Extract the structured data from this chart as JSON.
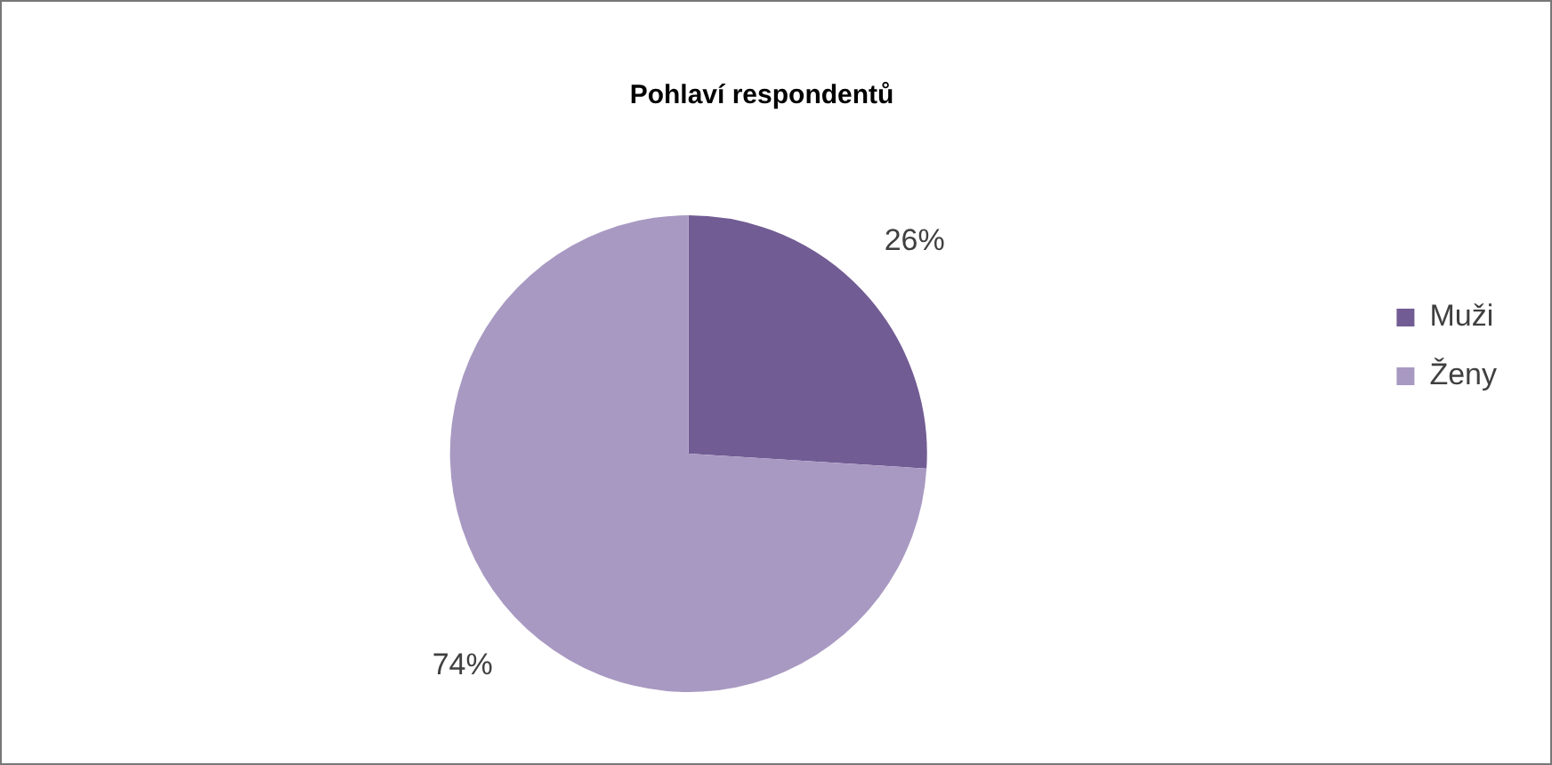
{
  "chart_data": {
    "type": "pie",
    "title": "Pohlaví respondentů",
    "categories": [
      "Muži",
      "Ženy"
    ],
    "values": [
      26,
      74
    ],
    "colors": [
      "#725c94",
      "#a899c2"
    ],
    "value_labels": [
      "26%",
      "74%"
    ],
    "legend": "right"
  }
}
